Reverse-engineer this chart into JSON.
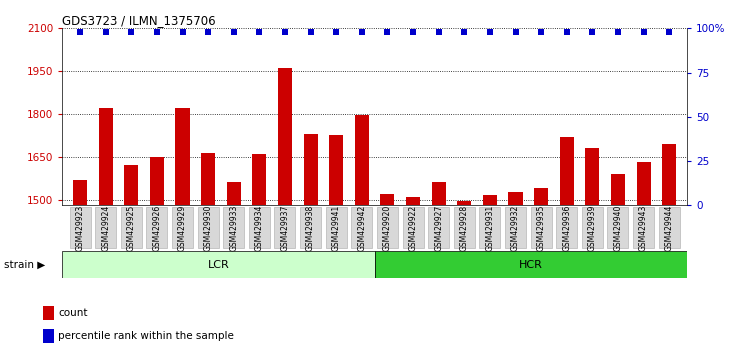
{
  "title": "GDS3723 / ILMN_1375706",
  "samples": [
    "GSM429923",
    "GSM429924",
    "GSM429925",
    "GSM429926",
    "GSM429929",
    "GSM429930",
    "GSM429933",
    "GSM429934",
    "GSM429937",
    "GSM429938",
    "GSM429941",
    "GSM429942",
    "GSM429920",
    "GSM429922",
    "GSM429927",
    "GSM429928",
    "GSM429931",
    "GSM429932",
    "GSM429935",
    "GSM429936",
    "GSM429939",
    "GSM429940",
    "GSM429943",
    "GSM429944"
  ],
  "counts": [
    1570,
    1820,
    1620,
    1650,
    1820,
    1665,
    1560,
    1660,
    1960,
    1730,
    1725,
    1795,
    1520,
    1510,
    1560,
    1495,
    1515,
    1525,
    1540,
    1720,
    1680,
    1590,
    1630,
    1695
  ],
  "percentile_ranks": [
    98,
    98,
    98,
    98,
    98,
    98,
    98,
    98,
    98,
    98,
    98,
    98,
    98,
    98,
    98,
    98,
    98,
    98,
    98,
    98,
    98,
    98,
    98,
    98
  ],
  "lcr_count": 12,
  "hcr_count": 12,
  "lcr_label": "LCR",
  "hcr_label": "HCR",
  "strain_label": "strain",
  "ylim_left": [
    1480,
    2100
  ],
  "ylim_right": [
    0,
    100
  ],
  "yticks_left": [
    1500,
    1650,
    1800,
    1950,
    2100
  ],
  "yticks_right": [
    0,
    25,
    50,
    75,
    100
  ],
  "ytick_labels_right": [
    "0",
    "25",
    "50",
    "75",
    "100%"
  ],
  "bar_color": "#cc0000",
  "dot_color": "#0000cc",
  "bar_width": 0.55,
  "lcr_color": "#ccffcc",
  "hcr_color": "#33cc33",
  "tick_bg_color": "#d8d8d8",
  "grid_color": "#000000"
}
